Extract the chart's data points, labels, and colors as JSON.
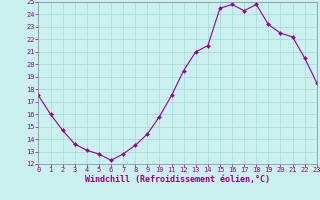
{
  "x": [
    0,
    1,
    2,
    3,
    4,
    5,
    6,
    7,
    8,
    9,
    10,
    11,
    12,
    13,
    14,
    15,
    16,
    17,
    18,
    19,
    20,
    21,
    22,
    23
  ],
  "y": [
    17.5,
    16.0,
    14.7,
    13.6,
    13.1,
    12.8,
    12.3,
    12.8,
    13.5,
    14.4,
    15.8,
    17.5,
    19.5,
    21.0,
    21.5,
    24.5,
    24.8,
    24.3,
    24.8,
    23.2,
    22.5,
    22.2,
    20.5,
    18.5
  ],
  "line_color": "#990099",
  "marker": "D",
  "marker_size": 2.0,
  "bg_color": "#caf0f0",
  "grid_color": "#aadddd",
  "xlabel": "Windchill (Refroidissement éolien,°C)",
  "xlim": [
    0,
    23
  ],
  "ylim": [
    12,
    25
  ],
  "yticks": [
    12,
    13,
    14,
    15,
    16,
    17,
    18,
    19,
    20,
    21,
    22,
    23,
    24,
    25
  ],
  "xticks": [
    0,
    1,
    2,
    3,
    4,
    5,
    6,
    7,
    8,
    9,
    10,
    11,
    12,
    13,
    14,
    15,
    16,
    17,
    18,
    19,
    20,
    21,
    22,
    23
  ],
  "tick_color": "#990099",
  "label_color": "#990099",
  "tick_fontsize": 5.0,
  "xlabel_fontsize": 6.0,
  "spine_color": "#888888"
}
